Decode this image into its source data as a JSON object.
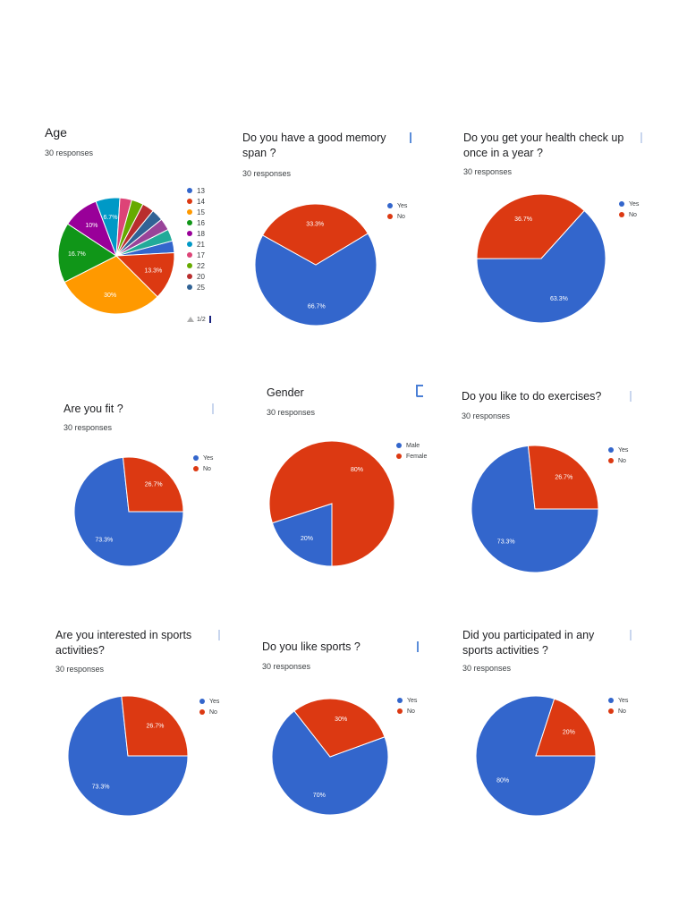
{
  "colors": {
    "blue": "#3366cc",
    "red": "#dc3912",
    "orange": "#ff9900",
    "green": "#109618",
    "purple": "#990099",
    "cyan": "#0099c6",
    "pink": "#dd4477",
    "lime": "#66aa00",
    "darkred": "#b82e2e",
    "navy": "#316395"
  },
  "age_pager": "1/2",
  "chart_data": [
    {
      "id": "age",
      "type": "pie",
      "title": "Age",
      "subtitle": "30 responses",
      "legend_position": "right",
      "slices": [
        {
          "label": "13",
          "value": 3.3,
          "color": "#3366cc"
        },
        {
          "label": "14",
          "value": 13.3,
          "color": "#dc3912",
          "data_label": "13.3%"
        },
        {
          "label": "15",
          "value": 30,
          "color": "#ff9900",
          "data_label": "30%"
        },
        {
          "label": "16",
          "value": 16.7,
          "color": "#109618",
          "data_label": "16.7%"
        },
        {
          "label": "18",
          "value": 10,
          "color": "#990099",
          "data_label": "10%"
        },
        {
          "label": "21",
          "value": 6.7,
          "color": "#0099c6",
          "data_label": "6.7%"
        },
        {
          "label": "17",
          "value": 3.3,
          "color": "#dd4477"
        },
        {
          "label": "22",
          "value": 3.3,
          "color": "#66aa00"
        },
        {
          "label": "20",
          "value": 3.3,
          "color": "#b82e2e"
        },
        {
          "label": "25",
          "value": 3.3,
          "color": "#316395"
        },
        {
          "label": "",
          "value": 3.3,
          "color": "#994499"
        },
        {
          "label": "",
          "value": 3.3,
          "color": "#22aa99"
        }
      ]
    },
    {
      "id": "memory",
      "type": "pie",
      "title": "Do you have a good memory span ?",
      "subtitle": "30 responses",
      "legend_position": "top-right",
      "slices": [
        {
          "label": "Yes",
          "value": 66.7,
          "color": "#3366cc",
          "data_label": "66.7%"
        },
        {
          "label": "No",
          "value": 33.3,
          "color": "#dc3912",
          "data_label": "33.3%"
        }
      ]
    },
    {
      "id": "health",
      "type": "pie",
      "title": "Do you get your health check up once in a year ?",
      "subtitle": "30 responses",
      "legend_position": "top-right",
      "slices": [
        {
          "label": "Yes",
          "value": 63.3,
          "color": "#3366cc",
          "data_label": "63.3%"
        },
        {
          "label": "No",
          "value": 36.7,
          "color": "#dc3912",
          "data_label": "36.7%"
        }
      ]
    },
    {
      "id": "fit",
      "type": "pie",
      "title": "Are you fit ?",
      "subtitle": "30 responses",
      "legend_position": "top-right",
      "slices": [
        {
          "label": "Yes",
          "value": 73.3,
          "color": "#3366cc",
          "data_label": "73.3%"
        },
        {
          "label": "No",
          "value": 26.7,
          "color": "#dc3912",
          "data_label": "26.7%"
        }
      ]
    },
    {
      "id": "gender",
      "type": "pie",
      "title": "Gender",
      "subtitle": "30 responses",
      "legend_position": "top-right",
      "slices": [
        {
          "label": "Male",
          "value": 20,
          "color": "#3366cc",
          "data_label": "20%"
        },
        {
          "label": "Female",
          "value": 80,
          "color": "#dc3912",
          "data_label": "80%"
        }
      ]
    },
    {
      "id": "exercise",
      "type": "pie",
      "title": "Do you like to do exercises?",
      "subtitle": "30 responses",
      "legend_position": "top-right",
      "slices": [
        {
          "label": "Yes",
          "value": 73.3,
          "color": "#3366cc",
          "data_label": "73.3%"
        },
        {
          "label": "No",
          "value": 26.7,
          "color": "#dc3912",
          "data_label": "26.7%"
        }
      ]
    },
    {
      "id": "interest",
      "type": "pie",
      "title": "Are you interested  in sports activities?",
      "subtitle": "30 responses",
      "legend_position": "top-right",
      "slices": [
        {
          "label": "Yes",
          "value": 73.3,
          "color": "#3366cc",
          "data_label": "73.3%"
        },
        {
          "label": "No",
          "value": 26.7,
          "color": "#dc3912",
          "data_label": "26.7%"
        }
      ]
    },
    {
      "id": "likesports",
      "type": "pie",
      "title": "Do you like sports ?",
      "subtitle": "30 responses",
      "legend_position": "top-right",
      "slices": [
        {
          "label": "Yes",
          "value": 70,
          "color": "#3366cc",
          "data_label": "70%"
        },
        {
          "label": "No",
          "value": 30,
          "color": "#dc3912",
          "data_label": "30%"
        }
      ]
    },
    {
      "id": "participated",
      "type": "pie",
      "title": "Did you participated in any sports activities  ?",
      "subtitle": "30 responses",
      "legend_position": "top-right",
      "slices": [
        {
          "label": "Yes",
          "value": 80,
          "color": "#3366cc",
          "data_label": "80%"
        },
        {
          "label": "No",
          "value": 20,
          "color": "#dc3912",
          "data_label": "20%"
        }
      ]
    }
  ]
}
